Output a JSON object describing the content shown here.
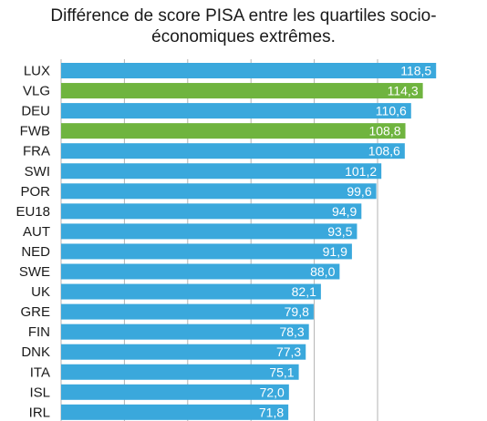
{
  "chart_data": {
    "type": "bar",
    "orientation": "horizontal",
    "title_lines": [
      "Différence de score PISA entre les quartiles socio-",
      "économiques extrêmes."
    ],
    "categories": [
      "LUX",
      "VLG",
      "DEU",
      "FWB",
      "FRA",
      "SWI",
      "POR",
      "EU18",
      "AUT",
      "NED",
      "SWE",
      "UK",
      "GRE",
      "FIN",
      "DNK",
      "ITA",
      "ISL",
      "IRL"
    ],
    "values": [
      118.5,
      114.3,
      110.6,
      108.8,
      108.6,
      101.2,
      99.6,
      94.9,
      93.5,
      91.9,
      88.0,
      82.1,
      79.8,
      78.3,
      77.3,
      75.1,
      72.0,
      71.8
    ],
    "value_labels": [
      "118,5",
      "114,3",
      "110,6",
      "108,8",
      "108,6",
      "101,2",
      "99,6",
      "94,9",
      "93,5",
      "91,9",
      "88,0",
      "82,1",
      "79,8",
      "78,3",
      "77,3",
      "75,1",
      "72,0",
      "71,8"
    ],
    "highlight": [
      "VLG",
      "FWB"
    ],
    "colors": {
      "default": "#3aa8dc",
      "highlight": "#6fb43f",
      "grid": "#b3b3b3"
    },
    "xlim": [
      0,
      120
    ],
    "grid_values": [
      20,
      40,
      60,
      80,
      100
    ],
    "grid": true,
    "xlabel": "",
    "ylabel": ""
  }
}
